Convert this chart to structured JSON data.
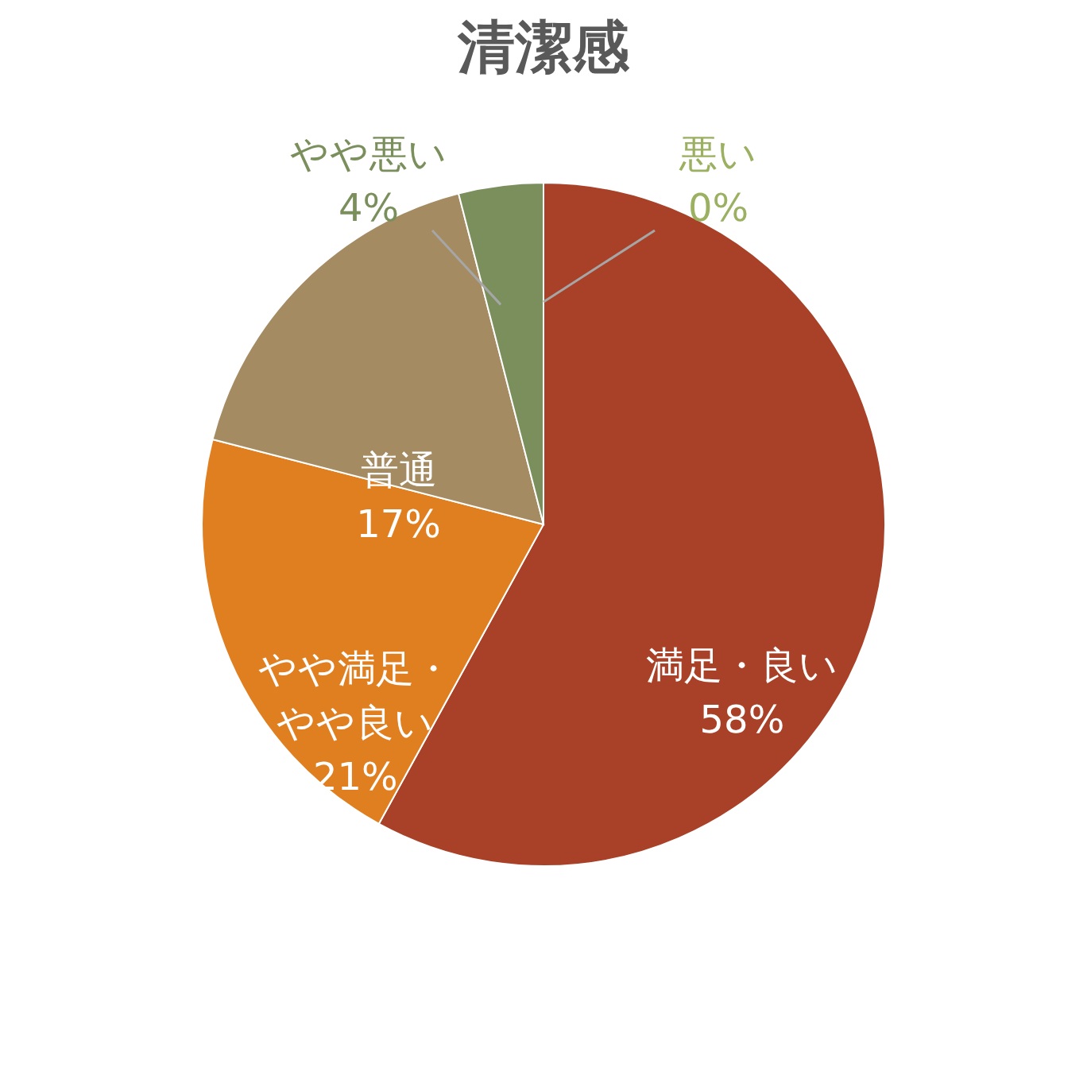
{
  "chart_data": {
    "type": "pie",
    "title": "清潔感",
    "categories": [
      "満足・良い",
      "やや満足・やや良い",
      "普通",
      "やや悪い",
      "悪い"
    ],
    "values": [
      58,
      21,
      17,
      4,
      0
    ],
    "value_labels": [
      "58%",
      "21%",
      "17%",
      "4%",
      "0%"
    ],
    "colors": [
      "#a84128",
      "#e07f20",
      "#a48b62",
      "#7a8f5c",
      "#9bb060"
    ]
  }
}
